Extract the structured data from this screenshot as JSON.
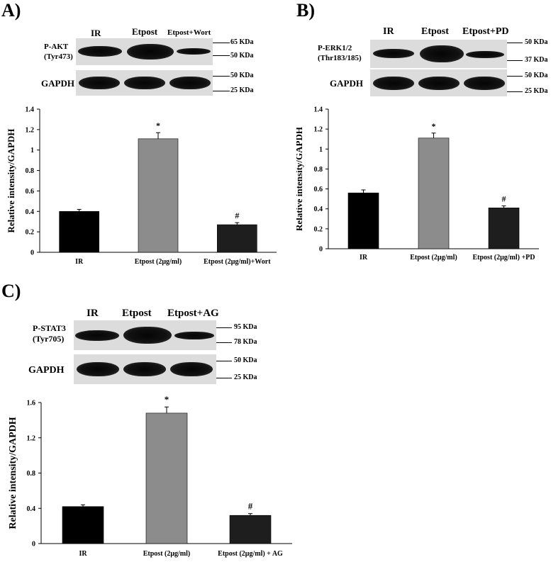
{
  "panels": {
    "A": {
      "label": "A)",
      "lanes": [
        "IR",
        "Etpost",
        "Etpost+Wort"
      ],
      "blot_rows": [
        "P-AKT",
        "(Tyr473)",
        "GAPDH"
      ],
      "markers": [
        "65 KDa",
        "50 KDa",
        "50 KDa",
        "25 KDa"
      ]
    },
    "B": {
      "label": "B)",
      "lanes": [
        "IR",
        "Etpost",
        "Etpost+PD"
      ],
      "blot_rows": [
        "P-ERK1/2",
        "(Thr183/185)",
        "GAPDH"
      ],
      "markers": [
        "50 KDa",
        "37 KDa",
        "50 KDa",
        "25 KDa"
      ]
    },
    "C": {
      "label": "C)",
      "lanes": [
        "IR",
        "Etpost",
        "Etpost+AG"
      ],
      "blot_rows": [
        "P-STAT3",
        "(Tyr705)",
        "GAPDH"
      ],
      "markers": [
        "95 KDa",
        "78 KDa",
        "50 KDa",
        "25 KDa"
      ]
    }
  },
  "chart_data": [
    {
      "type": "bar",
      "panel": "A",
      "categories": [
        "IR",
        "Etpost (2μg/ml)",
        "Etpost (2μg/ml)+Wort"
      ],
      "values": [
        0.4,
        1.11,
        0.27
      ],
      "errors": [
        0.02,
        0.06,
        0.02
      ],
      "annotations": [
        "",
        "*",
        "#"
      ],
      "colors": [
        "#000000",
        "#8c8c8c",
        "#1e1e1e"
      ],
      "ylabel": "Relative intensity/GAPDH",
      "ylim": [
        0,
        1.4
      ],
      "yticks": [
        "0",
        "0.2",
        "0.4",
        "0.6",
        "0.8",
        "1",
        "1.2",
        "1.4"
      ]
    },
    {
      "type": "bar",
      "panel": "B",
      "categories": [
        "IR",
        "Etpost (2μg/ml)",
        "Etpost (2μg/ml) +PD"
      ],
      "values": [
        0.56,
        1.11,
        0.41
      ],
      "errors": [
        0.03,
        0.05,
        0.02
      ],
      "annotations": [
        "",
        "*",
        "#"
      ],
      "colors": [
        "#000000",
        "#8c8c8c",
        "#1e1e1e"
      ],
      "ylabel": "Relative intensity/GAPDH",
      "ylim": [
        0,
        1.4
      ],
      "yticks": [
        "0",
        "0.2",
        "0.4",
        "0.6",
        "0.8",
        "1",
        "1.2",
        "1.4"
      ]
    },
    {
      "type": "bar",
      "panel": "C",
      "categories": [
        "IR",
        "Etpost (2μg/ml)",
        "Etpost (2μg/ml) + AG"
      ],
      "values": [
        0.42,
        1.48,
        0.32
      ],
      "errors": [
        0.02,
        0.07,
        0.02
      ],
      "annotations": [
        "",
        "*",
        "#"
      ],
      "colors": [
        "#000000",
        "#8c8c8c",
        "#1e1e1e"
      ],
      "ylabel": "Relative intensity/GAPDH",
      "ylim": [
        0,
        1.6
      ],
      "yticks": [
        "0",
        "0.4",
        "0.8",
        "1.2",
        "1.6"
      ]
    }
  ]
}
